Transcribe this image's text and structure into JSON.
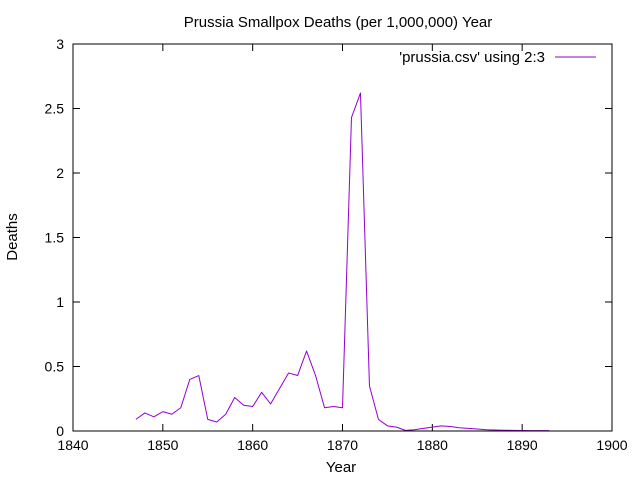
{
  "chart_data": {
    "type": "line",
    "title": "Prussia Smallpox Deaths (per 1,000,000) Year",
    "xlabel": "Year",
    "ylabel": "Deaths",
    "xlim": [
      1840,
      1900
    ],
    "ylim": [
      0,
      3
    ],
    "xticks": [
      1840,
      1850,
      1860,
      1870,
      1880,
      1890,
      1900
    ],
    "yticks": [
      0,
      0.5,
      1,
      1.5,
      2,
      2.5,
      3
    ],
    "ytick_labels": [
      "0",
      "0.5",
      "1",
      "1.5",
      "2",
      "2.5",
      "3"
    ],
    "grid": false,
    "legend_position": "top-right",
    "series": [
      {
        "name": "'prussia.csv' using 2:3",
        "color": "#9400d3",
        "x": [
          1847,
          1848,
          1849,
          1850,
          1851,
          1852,
          1853,
          1854,
          1855,
          1856,
          1857,
          1858,
          1859,
          1860,
          1861,
          1862,
          1863,
          1864,
          1865,
          1866,
          1867,
          1868,
          1869,
          1870,
          1871,
          1872,
          1873,
          1874,
          1875,
          1876,
          1877,
          1878,
          1879,
          1880,
          1881,
          1882,
          1883,
          1884,
          1885,
          1886,
          1887,
          1888,
          1889,
          1890,
          1891,
          1892,
          1893
        ],
        "y": [
          0.09,
          0.14,
          0.11,
          0.15,
          0.13,
          0.18,
          0.4,
          0.43,
          0.09,
          0.07,
          0.13,
          0.26,
          0.2,
          0.19,
          0.3,
          0.21,
          0.33,
          0.45,
          0.43,
          0.62,
          0.43,
          0.18,
          0.19,
          0.18,
          2.43,
          2.62,
          0.35,
          0.09,
          0.04,
          0.03,
          0.005,
          0.01,
          0.02,
          0.03,
          0.04,
          0.035,
          0.025,
          0.02,
          0.015,
          0.01,
          0.008,
          0.006,
          0.005,
          0.004,
          0.003,
          0.003,
          0.003
        ]
      }
    ]
  }
}
